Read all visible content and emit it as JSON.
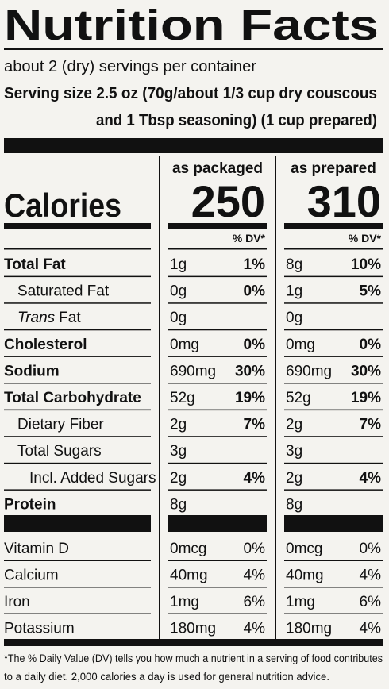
{
  "title": "Nutrition Facts",
  "servings": "about 2 (dry) servings per container",
  "serving_size": [
    "Serving size 2.5 oz (70g/about 1/3 cup dry couscous",
    "and 1 Tbsp seasoning) (1 cup prepared)"
  ],
  "columns": [
    "as packaged",
    "as prepared"
  ],
  "calories": {
    "label": "Calories",
    "values": [
      "250",
      "310"
    ]
  },
  "dv_header": [
    "% DV*",
    "% DV*"
  ],
  "nutrients": [
    {
      "label": "Total Fat",
      "bold": true,
      "indent": 0,
      "packaged": {
        "amount": "1g",
        "dv": "1%"
      },
      "prepared": {
        "amount": "8g",
        "dv": "10%"
      }
    },
    {
      "label": "Saturated Fat",
      "bold": false,
      "indent": 1,
      "packaged": {
        "amount": "0g",
        "dv": "0%"
      },
      "prepared": {
        "amount": "1g",
        "dv": "5%"
      }
    },
    {
      "italic_prefix": "Trans",
      "label": "Fat",
      "bold": false,
      "indent": 1,
      "packaged": {
        "amount": "0g"
      },
      "prepared": {
        "amount": "0g"
      }
    },
    {
      "label": "Cholesterol",
      "bold": true,
      "indent": 0,
      "packaged": {
        "amount": "0mg",
        "dv": "0%"
      },
      "prepared": {
        "amount": "0mg",
        "dv": "0%"
      }
    },
    {
      "label": "Sodium",
      "bold": true,
      "indent": 0,
      "packaged": {
        "amount": "690mg",
        "dv": "30%"
      },
      "prepared": {
        "amount": "690mg",
        "dv": "30%"
      }
    },
    {
      "label": "Total Carbohydrate",
      "bold": true,
      "indent": 0,
      "packaged": {
        "amount": "52g",
        "dv": "19%"
      },
      "prepared": {
        "amount": "52g",
        "dv": "19%"
      }
    },
    {
      "label": "Dietary Fiber",
      "bold": false,
      "indent": 1,
      "packaged": {
        "amount": "2g",
        "dv": "7%"
      },
      "prepared": {
        "amount": "2g",
        "dv": "7%"
      }
    },
    {
      "label": "Total Sugars",
      "bold": false,
      "indent": 1,
      "packaged": {
        "amount": "3g"
      },
      "prepared": {
        "amount": "3g"
      }
    },
    {
      "label": "Incl. Added Sugars",
      "bold": false,
      "indent": 2,
      "packaged": {
        "amount": "2g",
        "dv": "4%"
      },
      "prepared": {
        "amount": "2g",
        "dv": "4%"
      }
    },
    {
      "label": "Protein",
      "bold": true,
      "indent": 0,
      "packaged": {
        "amount": "8g"
      },
      "prepared": {
        "amount": "8g"
      }
    }
  ],
  "vitamins": [
    {
      "label": "Vitamin D",
      "packaged": {
        "amount": "0mcg",
        "dv": "0%"
      },
      "prepared": {
        "amount": "0mcg",
        "dv": "0%"
      }
    },
    {
      "label": "Calcium",
      "packaged": {
        "amount": "40mg",
        "dv": "4%"
      },
      "prepared": {
        "amount": "40mg",
        "dv": "4%"
      }
    },
    {
      "label": "Iron",
      "packaged": {
        "amount": "1mg",
        "dv": "6%"
      },
      "prepared": {
        "amount": "1mg",
        "dv": "6%"
      }
    },
    {
      "label": "Potassium",
      "packaged": {
        "amount": "180mg",
        "dv": "4%"
      },
      "prepared": {
        "amount": "180mg",
        "dv": "4%"
      }
    }
  ],
  "footnote": [
    "*The % Daily Value (DV) tells you how much a nutrient in a serving of food contributes",
    "to a daily diet. 2,000 calories a day is used for general nutrition advice."
  ]
}
